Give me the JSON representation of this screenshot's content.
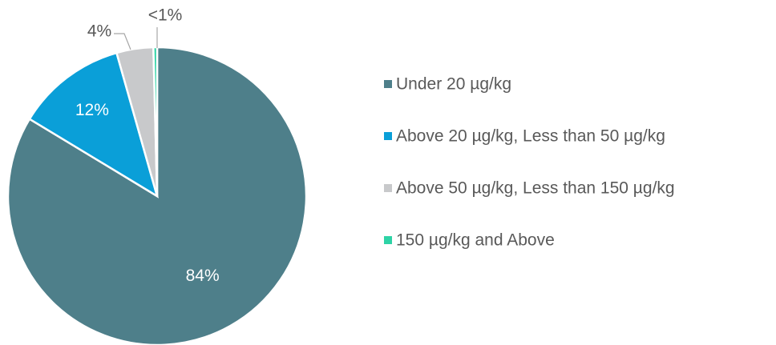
{
  "chart_data": {
    "type": "pie",
    "categories": [
      "Under 20 µg/kg",
      "Above 20 µg/kg, Less than 50 µg/kg",
      "Above 50 µg/kg, Less than 150 µg/kg",
      "150 µg/kg and Above"
    ],
    "values": [
      84,
      12,
      4,
      0.4
    ],
    "value_labels": [
      "84%",
      "12%",
      "4%",
      "<1%"
    ],
    "colors": [
      "#4e7f8a",
      "#0a9fd8",
      "#c8c9cb",
      "#2ed3a6"
    ]
  }
}
